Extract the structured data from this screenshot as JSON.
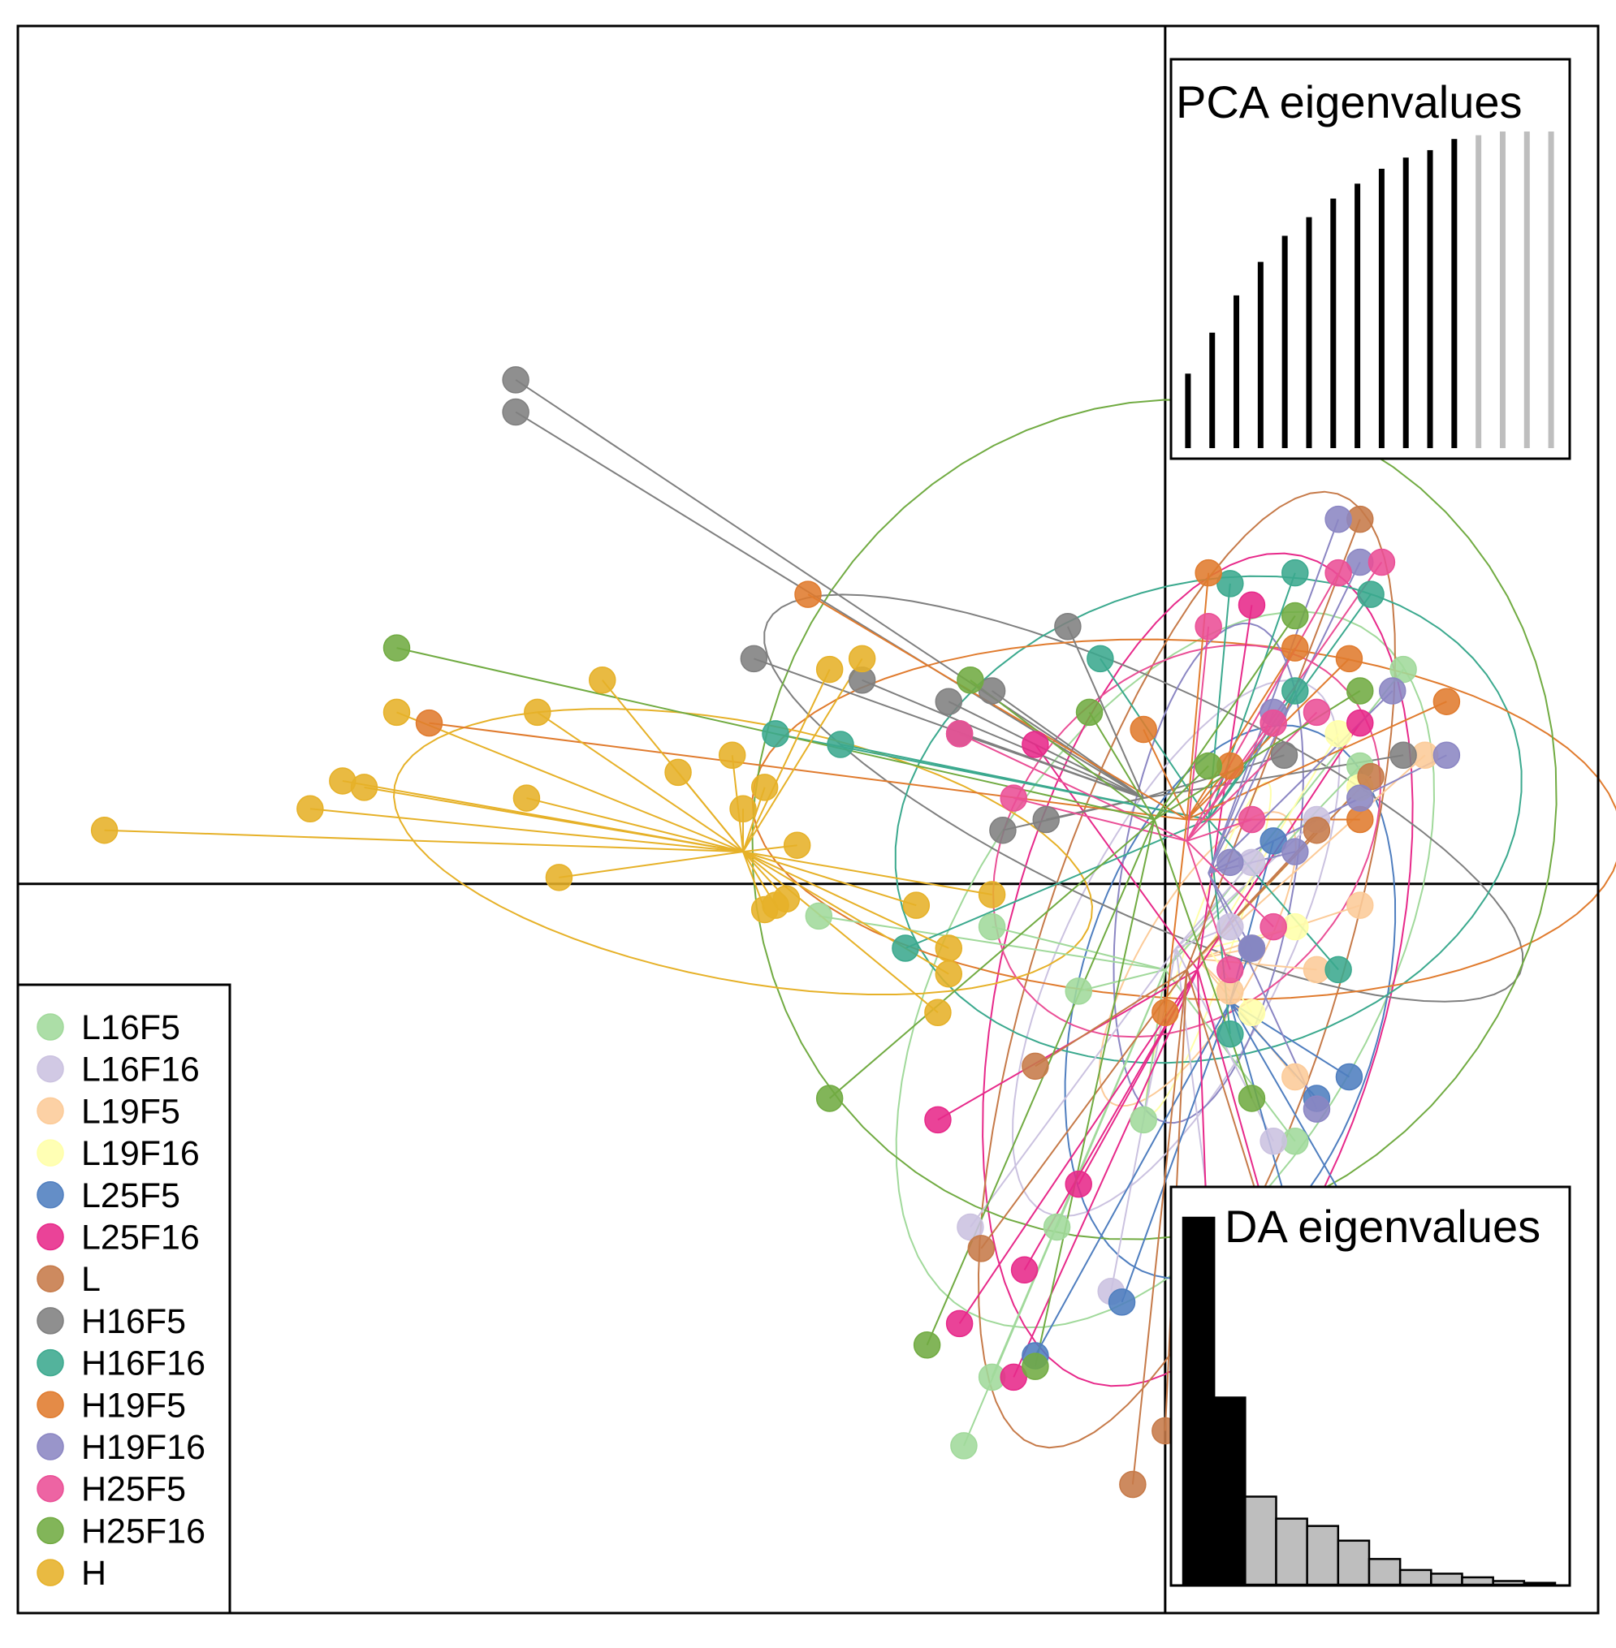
{
  "chart_data": {
    "type": "scatter",
    "subtype": "DAPC scatterplot (discriminant analysis of principal components)",
    "axes": {
      "x_range": [
        -5.3,
        2.0
      ],
      "y_range": [
        -3.4,
        4.0
      ],
      "crosshair_at": [
        0,
        0
      ],
      "ticks": "none"
    },
    "legend_position": "bottom-left",
    "groups": [
      {
        "name": "L16F5",
        "color": "#A1D99B",
        "centroid": [
          0.0,
          -0.4
        ],
        "points": [
          [
            -0.93,
            -2.62
          ],
          [
            -1.6,
            -0.15
          ],
          [
            -0.8,
            -0.2
          ],
          [
            -0.5,
            -1.6
          ],
          [
            -0.1,
            -1.1
          ],
          [
            -0.8,
            -2.3
          ],
          [
            0.9,
            0.55
          ],
          [
            0.6,
            -1.2
          ],
          [
            -0.4,
            -0.5
          ],
          [
            1.1,
            1.0
          ]
        ]
      },
      {
        "name": "L16F16",
        "color": "#CBC2E0",
        "centroid": [
          0.05,
          -0.3
        ],
        "points": [
          [
            -0.9,
            -1.6
          ],
          [
            -0.25,
            -1.9
          ],
          [
            0.3,
            -0.2
          ],
          [
            0.2,
            -1.5
          ],
          [
            0.7,
            0.3
          ],
          [
            0.4,
            0.1
          ],
          [
            0.5,
            -1.2
          ]
        ]
      },
      {
        "name": "L19F5",
        "color": "#FCCB99",
        "centroid": [
          0.15,
          -0.35
        ],
        "points": [
          [
            0.7,
            -0.4
          ],
          [
            0.4,
            -0.3
          ],
          [
            1.2,
            0.6
          ],
          [
            0.9,
            -0.1
          ],
          [
            0.6,
            -0.9
          ],
          [
            0.3,
            -0.5
          ]
        ]
      },
      {
        "name": "L19F16",
        "color": "#FFFFAA",
        "centroid": [
          0.2,
          -0.3
        ],
        "points": [
          [
            0.9,
            0.45
          ],
          [
            0.8,
            0.7
          ],
          [
            0.6,
            -0.2
          ],
          [
            0.4,
            -0.6
          ]
        ]
      },
      {
        "name": "L25F5",
        "color": "#4F7EBF",
        "centroid": [
          0.3,
          -0.55
        ],
        "points": [
          [
            -0.6,
            -2.2
          ],
          [
            -0.2,
            -1.95
          ],
          [
            0.9,
            -1.6
          ],
          [
            0.8,
            -2.35
          ],
          [
            0.7,
            -1.0
          ],
          [
            0.85,
            -0.9
          ],
          [
            0.5,
            0.2
          ],
          [
            0.4,
            -0.3
          ]
        ]
      },
      {
        "name": "L25F16",
        "color": "#E7298A",
        "centroid": [
          0.15,
          -0.4
        ],
        "points": [
          [
            -0.95,
            -2.05
          ],
          [
            -0.7,
            -2.3
          ],
          [
            -0.65,
            -1.8
          ],
          [
            -1.05,
            -1.1
          ],
          [
            -0.4,
            -1.4
          ],
          [
            0.65,
            -2.2
          ],
          [
            0.9,
            0.75
          ],
          [
            0.4,
            1.3
          ],
          [
            -0.6,
            0.65
          ],
          [
            0.2,
            -1.8
          ]
        ]
      },
      {
        "name": "L",
        "color": "#C67A49",
        "centroid": [
          0.1,
          -0.4
        ],
        "points": [
          [
            -0.15,
            -2.8
          ],
          [
            -0.85,
            -1.7
          ],
          [
            -0.6,
            -0.85
          ],
          [
            0.9,
            1.7
          ],
          [
            0.95,
            0.5
          ],
          [
            0.7,
            0.25
          ],
          [
            0.0,
            -2.55
          ],
          [
            0.5,
            -1.7
          ]
        ]
      },
      {
        "name": "H16F5",
        "color": "#7F7F7F",
        "centroid": [
          -0.1,
          0.4
        ],
        "points": [
          [
            -3.0,
            2.2
          ],
          [
            -3.0,
            2.35
          ],
          [
            -1.9,
            1.05
          ],
          [
            -1.4,
            0.95
          ],
          [
            -1.0,
            0.85
          ],
          [
            -0.95,
            0.7
          ],
          [
            -0.75,
            0.25
          ],
          [
            -0.8,
            0.9
          ],
          [
            -0.45,
            1.2
          ],
          [
            0.55,
            0.6
          ],
          [
            -0.55,
            0.3
          ],
          [
            1.1,
            0.6
          ]
        ]
      },
      {
        "name": "H16F16",
        "color": "#3BA98E",
        "centroid": [
          0.2,
          0.3
        ],
        "points": [
          [
            -1.8,
            0.7
          ],
          [
            -1.5,
            0.65
          ],
          [
            -0.3,
            1.05
          ],
          [
            0.3,
            1.4
          ],
          [
            0.6,
            1.45
          ],
          [
            0.95,
            1.35
          ],
          [
            -1.2,
            -0.3
          ],
          [
            0.3,
            -0.7
          ],
          [
            0.8,
            -0.4
          ],
          [
            0.6,
            0.9
          ]
        ]
      },
      {
        "name": "H19F5",
        "color": "#E07B2E",
        "centroid": [
          0.1,
          0.3
        ],
        "points": [
          [
            -3.4,
            0.75
          ],
          [
            -1.65,
            1.35
          ],
          [
            -0.1,
            0.72
          ],
          [
            0.2,
            1.45
          ],
          [
            0.85,
            1.05
          ],
          [
            1.3,
            0.85
          ],
          [
            0.9,
            0.3
          ],
          [
            0.0,
            -0.6
          ],
          [
            0.6,
            1.1
          ],
          [
            0.3,
            0.55
          ]
        ]
      },
      {
        "name": "H19F16",
        "color": "#8B86C3",
        "centroid": [
          0.2,
          0.05
        ],
        "points": [
          [
            0.8,
            1.7
          ],
          [
            0.9,
            1.5
          ],
          [
            1.05,
            0.9
          ],
          [
            1.3,
            0.6
          ],
          [
            0.5,
            0.8
          ],
          [
            0.9,
            0.4
          ],
          [
            0.7,
            -1.05
          ],
          [
            0.4,
            -0.3
          ],
          [
            0.6,
            0.15
          ],
          [
            0.3,
            0.1
          ]
        ]
      },
      {
        "name": "H25F5",
        "color": "#EA4F96",
        "centroid": [
          0.1,
          0.2
        ],
        "points": [
          [
            -0.95,
            0.7
          ],
          [
            -0.7,
            0.4
          ],
          [
            0.2,
            1.2
          ],
          [
            0.5,
            0.75
          ],
          [
            0.8,
            1.45
          ],
          [
            1.0,
            1.5
          ],
          [
            0.7,
            0.8
          ],
          [
            0.4,
            0.3
          ],
          [
            0.3,
            -0.4
          ],
          [
            0.5,
            -0.2
          ]
        ]
      },
      {
        "name": "H25F16",
        "color": "#71AB42",
        "centroid": [
          -0.05,
          0.3
        ],
        "points": [
          [
            -3.55,
            1.1
          ],
          [
            -1.55,
            -1.0
          ],
          [
            -0.9,
            0.95
          ],
          [
            -1.1,
            -2.15
          ],
          [
            -0.6,
            -2.25
          ],
          [
            -0.35,
            0.8
          ],
          [
            0.4,
            -1.0
          ],
          [
            0.2,
            0.55
          ],
          [
            0.6,
            1.25
          ],
          [
            0.9,
            0.9
          ]
        ]
      },
      {
        "name": "H",
        "color": "#E6B128",
        "centroid": [
          -1.95,
          0.15
        ],
        "points": [
          [
            -4.9,
            0.25
          ],
          [
            -3.95,
            0.35
          ],
          [
            -3.8,
            0.48
          ],
          [
            -3.7,
            0.45
          ],
          [
            -3.55,
            0.8
          ],
          [
            -2.9,
            0.8
          ],
          [
            -2.95,
            0.4
          ],
          [
            -2.8,
            0.03
          ],
          [
            -2.6,
            0.95
          ],
          [
            -2.25,
            0.52
          ],
          [
            -2.0,
            0.6
          ],
          [
            -1.95,
            0.35
          ],
          [
            -1.85,
            0.45
          ],
          [
            -1.85,
            -0.12
          ],
          [
            -1.8,
            -0.1
          ],
          [
            -1.7,
            0.18
          ],
          [
            -1.55,
            1.0
          ],
          [
            -1.4,
            1.05
          ],
          [
            -1.15,
            -0.1
          ],
          [
            -1.0,
            -0.42
          ],
          [
            -1.0,
            -0.3
          ],
          [
            -1.05,
            -0.6
          ],
          [
            -0.8,
            -0.05
          ],
          [
            -1.75,
            -0.07
          ]
        ]
      }
    ],
    "inset_pca": {
      "title": "PCA eigenvalues",
      "position": "top-right",
      "values": [
        0.2,
        0.31,
        0.41,
        0.5,
        0.57,
        0.62,
        0.67,
        0.71,
        0.75,
        0.78,
        0.8,
        0.83,
        0.84,
        0.85,
        0.85,
        0.85
      ],
      "retained": 12,
      "retained_color": "#000000",
      "discarded_color": "#BEBEBE"
    },
    "inset_da": {
      "title": "DA eigenvalues",
      "position": "bottom-right",
      "values": [
        1.0,
        0.51,
        0.24,
        0.18,
        0.16,
        0.12,
        0.07,
        0.04,
        0.03,
        0.02,
        0.01,
        0.005
      ],
      "retained": 2,
      "retained_color": "#000000",
      "discarded_color": "#BEBEBE"
    }
  }
}
